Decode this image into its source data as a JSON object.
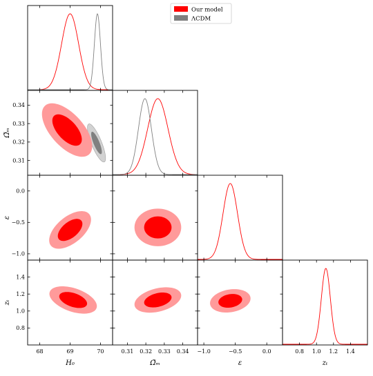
{
  "chart_data": {
    "type": "corner",
    "legend": {
      "placement": "top-center",
      "entries": [
        {
          "name": "Our model",
          "color": "#ff0000"
        },
        {
          "name": "ΛCDM",
          "color": "#808080"
        }
      ]
    },
    "parameters": [
      {
        "id": "H0",
        "label": "H₀",
        "range": [
          67.6,
          70.4
        ],
        "ticks": [
          68,
          69,
          70
        ],
        "tick_labels": [
          "68",
          "69",
          "70"
        ]
      },
      {
        "id": "Om",
        "label": "Ω̃ₘ",
        "range": [
          0.302,
          0.348
        ],
        "ticks": [
          0.31,
          0.32,
          0.33,
          0.34
        ],
        "tick_labels": [
          "0.31",
          "0.32",
          "0.33",
          "0.34"
        ]
      },
      {
        "id": "eps",
        "label": "ε",
        "range": [
          -1.1,
          0.25
        ],
        "ticks": [
          -1.0,
          -0.5,
          0.0
        ],
        "tick_labels": [
          "−1.0",
          "−0.5",
          "0.0"
        ]
      },
      {
        "id": "zt",
        "label": "zₜ",
        "range": [
          0.6,
          1.6
        ],
        "ticks": [
          0.8,
          1.0,
          1.2,
          1.4
        ],
        "tick_labels": [
          "0.8",
          "1.0",
          "1.2",
          "1.4"
        ]
      }
    ],
    "series": [
      {
        "name": "Our model",
        "color": "#ff0000",
        "marginals": {
          "H0": {
            "mean": 69.0,
            "sigma": 0.28
          },
          "Om": {
            "mean": 0.3265,
            "sigma": 0.0055
          },
          "eps": {
            "mean": -0.58,
            "sigma": 0.115
          },
          "zt": {
            "mean": 1.11,
            "sigma": 0.053
          }
        },
        "contours": [
          {
            "x": "H0",
            "y": "Om",
            "center": [
              68.9,
              0.3265
            ],
            "sigma": [
              0.36,
              0.0063
            ],
            "rho": -0.6
          },
          {
            "x": "H0",
            "y": "eps",
            "center": [
              69.0,
              -0.62
            ],
            "sigma": [
              0.3,
              0.13
            ],
            "rho": 0.55
          },
          {
            "x": "Om",
            "y": "eps",
            "center": [
              0.3265,
              -0.58
            ],
            "sigma": [
              0.0055,
              0.13
            ],
            "rho": 0.0
          },
          {
            "x": "H0",
            "y": "zt",
            "center": [
              69.1,
              1.13
            ],
            "sigma": [
              0.34,
              0.07
            ],
            "rho": -0.45
          },
          {
            "x": "Om",
            "y": "zt",
            "center": [
              0.3265,
              1.13
            ],
            "sigma": [
              0.0055,
              0.065
            ],
            "rho": 0.35
          },
          {
            "x": "eps",
            "y": "zt",
            "center": [
              -0.58,
              1.12
            ],
            "sigma": [
              0.14,
              0.06
            ],
            "rho": 0.2
          }
        ]
      },
      {
        "name": "ΛCDM",
        "color": "#808080",
        "marginals": {
          "H0": {
            "mean": 69.9,
            "sigma": 0.1
          },
          "Om": {
            "mean": 0.3195,
            "sigma": 0.0035
          }
        },
        "contours": [
          {
            "x": "H0",
            "y": "Om",
            "center": [
              69.87,
              0.3195
            ],
            "sigma": [
              0.13,
              0.0045
            ],
            "rho": -0.8
          }
        ]
      }
    ],
    "contour_levels": [
      1,
      2
    ],
    "fill_colors": {
      "Our model": [
        "#ff0000",
        "#ff9a9a"
      ],
      "ΛCDM": [
        "#808080",
        "#d2d2d2"
      ]
    }
  }
}
